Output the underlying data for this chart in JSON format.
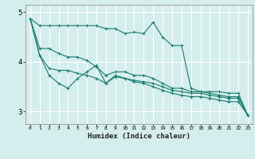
{
  "xlabel": "Humidex (Indice chaleur)",
  "ylabel": "",
  "bg_color": "#d4eeed",
  "grid_color": "#ffffff",
  "line_color": "#1a7a6e",
  "xlim": [
    -0.5,
    23.5
  ],
  "ylim": [
    2.75,
    5.15
  ],
  "yticks": [
    3,
    4,
    5
  ],
  "xticks": [
    0,
    1,
    2,
    3,
    4,
    5,
    6,
    7,
    8,
    9,
    10,
    11,
    12,
    13,
    14,
    15,
    16,
    17,
    18,
    19,
    20,
    21,
    22,
    23
  ],
  "series": [
    [
      4.87,
      4.73,
      4.73,
      4.73,
      4.73,
      4.73,
      4.73,
      4.73,
      4.67,
      4.67,
      4.57,
      4.6,
      4.57,
      4.8,
      4.5,
      4.33,
      4.33,
      3.47,
      3.4,
      3.4,
      3.4,
      3.37,
      3.37,
      2.93
    ],
    [
      4.87,
      4.27,
      4.27,
      4.17,
      4.1,
      4.1,
      4.03,
      3.9,
      3.73,
      3.8,
      3.8,
      3.73,
      3.73,
      3.67,
      3.57,
      3.47,
      3.47,
      3.4,
      3.4,
      3.37,
      3.33,
      3.3,
      3.3,
      2.93
    ],
    [
      4.87,
      4.13,
      3.87,
      3.83,
      3.83,
      3.77,
      3.73,
      3.67,
      3.57,
      3.7,
      3.67,
      3.63,
      3.6,
      3.57,
      3.5,
      3.43,
      3.4,
      3.37,
      3.37,
      3.33,
      3.3,
      3.27,
      3.27,
      2.93
    ],
    [
      4.87,
      4.13,
      3.73,
      3.57,
      3.47,
      3.67,
      3.8,
      3.93,
      3.57,
      3.73,
      3.67,
      3.6,
      3.57,
      3.5,
      3.43,
      3.37,
      3.33,
      3.3,
      3.3,
      3.27,
      3.23,
      3.2,
      3.2,
      2.93
    ]
  ]
}
